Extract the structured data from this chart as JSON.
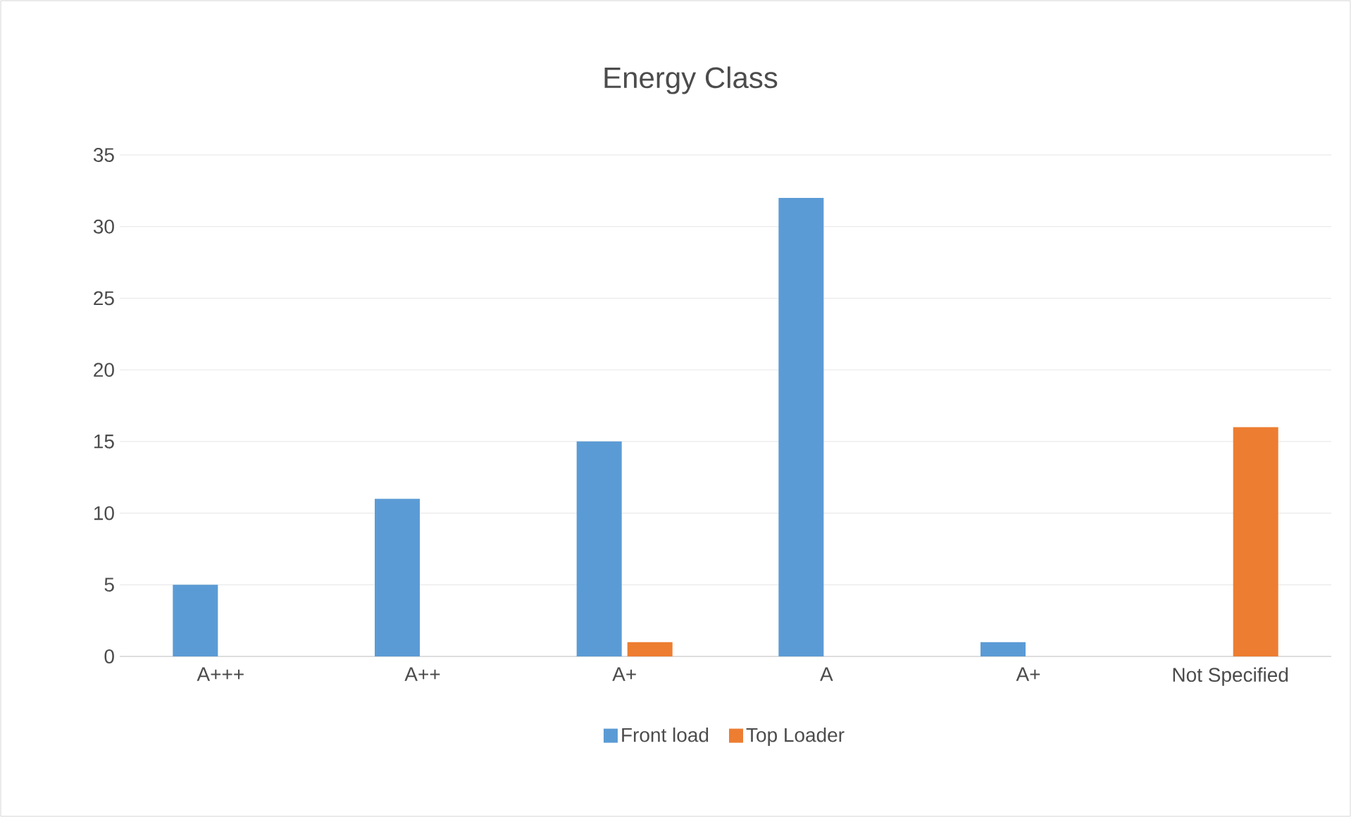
{
  "chart_data": {
    "type": "bar",
    "title": "Energy Class",
    "categories": [
      "A+++",
      "A++",
      "A+",
      "A",
      "A+",
      "Not Specified"
    ],
    "series": [
      {
        "name": "Front load",
        "color": "#5b9bd5",
        "values": [
          5,
          11,
          15,
          32,
          1,
          0
        ]
      },
      {
        "name": "Top Loader",
        "color": "#ed7d31",
        "values": [
          0,
          0,
          1,
          0,
          0,
          16
        ]
      }
    ],
    "ylim": [
      0,
      35
    ],
    "yticks": [
      0,
      5,
      10,
      15,
      20,
      25,
      30,
      35
    ],
    "grid": "y",
    "legend": "bottom"
  }
}
